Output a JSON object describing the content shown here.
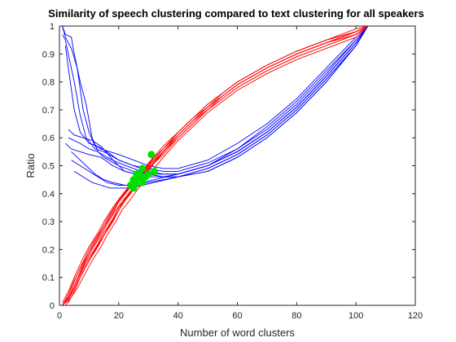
{
  "chart_data": {
    "type": "line",
    "title": "Similarity of speech clustering compared to text clustering for all speakers",
    "xlabel": "Number of word clusters",
    "ylabel": "Ratio",
    "xlim": [
      0,
      120
    ],
    "ylim": [
      0,
      1
    ],
    "xticks": [
      "0",
      "20",
      "40",
      "60",
      "80",
      "100",
      "120"
    ],
    "yticks": [
      "0",
      "0.1",
      "0.2",
      "0.3",
      "0.4",
      "0.5",
      "0.6",
      "0.7",
      "0.8",
      "0.9",
      "1"
    ],
    "grid": false,
    "colors": {
      "blue": "#0000ff",
      "red": "#ff0000",
      "green": "#00e000"
    },
    "series": [
      {
        "color": "blue",
        "x": [
          1,
          2,
          4,
          5,
          7,
          9,
          11,
          13,
          15,
          20,
          25,
          30,
          35,
          40,
          50,
          60,
          70,
          80,
          90,
          100,
          104
        ],
        "y": [
          1,
          0.97,
          0.96,
          0.9,
          0.8,
          0.72,
          0.6,
          0.55,
          0.53,
          0.5,
          0.48,
          0.47,
          0.46,
          0.47,
          0.5,
          0.56,
          0.64,
          0.73,
          0.84,
          0.95,
          1
        ]
      },
      {
        "color": "blue",
        "x": [
          1,
          2,
          4,
          6,
          8,
          10,
          12,
          14,
          20,
          25,
          30,
          35,
          40,
          50,
          60,
          70,
          80,
          90,
          100,
          104
        ],
        "y": [
          1,
          0.96,
          0.92,
          0.85,
          0.7,
          0.62,
          0.57,
          0.56,
          0.54,
          0.52,
          0.5,
          0.49,
          0.49,
          0.52,
          0.58,
          0.65,
          0.74,
          0.85,
          0.96,
          1
        ]
      },
      {
        "color": "blue",
        "x": [
          1,
          2,
          3,
          5,
          7,
          9,
          12,
          15,
          20,
          25,
          30,
          35,
          40,
          50,
          60,
          70,
          80,
          90,
          100,
          104
        ],
        "y": [
          0.97,
          0.95,
          0.9,
          0.8,
          0.68,
          0.6,
          0.56,
          0.55,
          0.52,
          0.5,
          0.48,
          0.47,
          0.47,
          0.5,
          0.55,
          0.62,
          0.71,
          0.82,
          0.94,
          1
        ]
      },
      {
        "color": "blue",
        "x": [
          2,
          3,
          5,
          7,
          10,
          13,
          16,
          20,
          25,
          30,
          35,
          40,
          50,
          60,
          70,
          80,
          90,
          100,
          104
        ],
        "y": [
          0.93,
          0.85,
          0.7,
          0.62,
          0.58,
          0.57,
          0.55,
          0.52,
          0.5,
          0.49,
          0.48,
          0.48,
          0.51,
          0.56,
          0.63,
          0.72,
          0.83,
          0.95,
          1
        ]
      },
      {
        "color": "blue",
        "x": [
          3,
          5,
          7,
          10,
          13,
          16,
          20,
          25,
          30,
          35,
          40,
          50,
          60,
          70,
          80,
          90,
          100,
          104
        ],
        "y": [
          0.6,
          0.59,
          0.58,
          0.56,
          0.55,
          0.53,
          0.51,
          0.49,
          0.47,
          0.46,
          0.46,
          0.49,
          0.54,
          0.61,
          0.7,
          0.81,
          0.93,
          1
        ]
      },
      {
        "color": "blue",
        "x": [
          3,
          5,
          8,
          11,
          14,
          18,
          22,
          26,
          30,
          35,
          40,
          50,
          60,
          70,
          80,
          90,
          100,
          104
        ],
        "y": [
          0.63,
          0.61,
          0.6,
          0.59,
          0.57,
          0.52,
          0.48,
          0.47,
          0.46,
          0.46,
          0.46,
          0.49,
          0.54,
          0.61,
          0.7,
          0.81,
          0.93,
          1
        ]
      },
      {
        "color": "blue",
        "x": [
          4,
          6,
          9,
          12,
          15,
          18,
          22,
          26,
          30,
          35,
          40,
          50,
          60,
          70,
          80,
          90,
          100,
          104
        ],
        "y": [
          0.55,
          0.53,
          0.5,
          0.47,
          0.45,
          0.44,
          0.43,
          0.43,
          0.44,
          0.45,
          0.46,
          0.48,
          0.53,
          0.6,
          0.69,
          0.8,
          0.93,
          1
        ]
      },
      {
        "color": "blue",
        "x": [
          5,
          8,
          11,
          14,
          17,
          20,
          24,
          28,
          32,
          36,
          40,
          50,
          60,
          70,
          80,
          90,
          100,
          104
        ],
        "y": [
          0.48,
          0.46,
          0.44,
          0.43,
          0.42,
          0.42,
          0.42,
          0.43,
          0.44,
          0.45,
          0.46,
          0.48,
          0.53,
          0.6,
          0.69,
          0.8,
          0.93,
          1
        ]
      },
      {
        "color": "blue",
        "x": [
          4,
          7,
          10,
          13,
          16,
          20,
          24,
          28,
          32,
          36,
          40,
          50,
          60,
          70,
          80,
          90,
          100,
          104
        ],
        "y": [
          0.52,
          0.5,
          0.48,
          0.46,
          0.44,
          0.43,
          0.43,
          0.44,
          0.45,
          0.46,
          0.47,
          0.5,
          0.55,
          0.62,
          0.71,
          0.82,
          0.94,
          1
        ]
      },
      {
        "color": "blue",
        "x": [
          2,
          4,
          7,
          10,
          14,
          18,
          22,
          26,
          30,
          35,
          40,
          50,
          60,
          70,
          80,
          90,
          100,
          104
        ],
        "y": [
          0.58,
          0.56,
          0.55,
          0.54,
          0.53,
          0.5,
          0.48,
          0.47,
          0.47,
          0.47,
          0.47,
          0.5,
          0.55,
          0.62,
          0.71,
          0.82,
          0.94,
          1
        ]
      },
      {
        "color": "red",
        "x": [
          1,
          3,
          5,
          8,
          10,
          13,
          15,
          18,
          20,
          23,
          25,
          28,
          30,
          35,
          40,
          45,
          50,
          55,
          60,
          70,
          80,
          90,
          100,
          104
        ],
        "y": [
          0,
          0.04,
          0.09,
          0.15,
          0.19,
          0.24,
          0.28,
          0.33,
          0.37,
          0.41,
          0.44,
          0.47,
          0.5,
          0.55,
          0.61,
          0.66,
          0.71,
          0.75,
          0.79,
          0.85,
          0.9,
          0.94,
          0.98,
          1
        ]
      },
      {
        "color": "red",
        "x": [
          1,
          3,
          5,
          8,
          10,
          13,
          15,
          18,
          20,
          23,
          25,
          28,
          30,
          35,
          40,
          45,
          50,
          55,
          60,
          70,
          80,
          90,
          100,
          104
        ],
        "y": [
          0.01,
          0.05,
          0.1,
          0.17,
          0.21,
          0.26,
          0.3,
          0.35,
          0.38,
          0.42,
          0.45,
          0.48,
          0.51,
          0.57,
          0.62,
          0.67,
          0.72,
          0.76,
          0.8,
          0.86,
          0.91,
          0.95,
          0.98,
          1
        ]
      },
      {
        "color": "red",
        "x": [
          1,
          3,
          5,
          8,
          10,
          13,
          15,
          18,
          20,
          23,
          25,
          28,
          30,
          35,
          40,
          45,
          50,
          55,
          60,
          70,
          80,
          90,
          100,
          104
        ],
        "y": [
          0,
          0.03,
          0.07,
          0.13,
          0.17,
          0.22,
          0.26,
          0.31,
          0.35,
          0.39,
          0.42,
          0.46,
          0.49,
          0.54,
          0.6,
          0.65,
          0.7,
          0.74,
          0.78,
          0.84,
          0.89,
          0.93,
          0.97,
          1
        ]
      },
      {
        "color": "red",
        "x": [
          2,
          4,
          6,
          9,
          11,
          14,
          16,
          19,
          21,
          24,
          26,
          29,
          31,
          35,
          40,
          45,
          50,
          55,
          60,
          70,
          80,
          90,
          100,
          104
        ],
        "y": [
          0.02,
          0.06,
          0.11,
          0.18,
          0.22,
          0.27,
          0.31,
          0.36,
          0.39,
          0.43,
          0.46,
          0.49,
          0.52,
          0.56,
          0.62,
          0.67,
          0.71,
          0.76,
          0.8,
          0.86,
          0.91,
          0.95,
          0.98,
          1
        ]
      },
      {
        "color": "red",
        "x": [
          2,
          4,
          6,
          9,
          11,
          14,
          16,
          19,
          21,
          24,
          26,
          29,
          31,
          35,
          40,
          45,
          50,
          55,
          60,
          70,
          80,
          90,
          100,
          104
        ],
        "y": [
          0.01,
          0.04,
          0.08,
          0.14,
          0.18,
          0.23,
          0.27,
          0.32,
          0.36,
          0.4,
          0.43,
          0.47,
          0.5,
          0.55,
          0.61,
          0.66,
          0.71,
          0.75,
          0.79,
          0.85,
          0.9,
          0.94,
          0.98,
          1
        ]
      },
      {
        "color": "red",
        "x": [
          2,
          4,
          6,
          9,
          11,
          14,
          16,
          19,
          21,
          24,
          26,
          29,
          31,
          35,
          40,
          45,
          50,
          55,
          60,
          70,
          80,
          90,
          100,
          104
        ],
        "y": [
          0.01,
          0.05,
          0.09,
          0.16,
          0.2,
          0.25,
          0.29,
          0.34,
          0.37,
          0.41,
          0.44,
          0.48,
          0.51,
          0.56,
          0.61,
          0.66,
          0.71,
          0.75,
          0.79,
          0.85,
          0.9,
          0.94,
          0.97,
          1
        ]
      },
      {
        "color": "red",
        "x": [
          3,
          5,
          7,
          10,
          12,
          15,
          17,
          20,
          22,
          25,
          27,
          30,
          32,
          36,
          40,
          45,
          50,
          55,
          60,
          70,
          80,
          90,
          100,
          104
        ],
        "y": [
          0.02,
          0.07,
          0.12,
          0.19,
          0.23,
          0.28,
          0.32,
          0.37,
          0.4,
          0.44,
          0.47,
          0.5,
          0.53,
          0.57,
          0.62,
          0.67,
          0.72,
          0.76,
          0.8,
          0.86,
          0.91,
          0.95,
          0.99,
          1
        ]
      },
      {
        "color": "red",
        "x": [
          3,
          5,
          7,
          10,
          12,
          15,
          17,
          20,
          22,
          25,
          27,
          30,
          32,
          36,
          40,
          45,
          50,
          55,
          60,
          70,
          80,
          90,
          100,
          104
        ],
        "y": [
          0.01,
          0.05,
          0.1,
          0.16,
          0.2,
          0.25,
          0.29,
          0.34,
          0.38,
          0.42,
          0.45,
          0.48,
          0.51,
          0.56,
          0.61,
          0.66,
          0.7,
          0.75,
          0.79,
          0.85,
          0.9,
          0.94,
          0.98,
          1
        ]
      },
      {
        "color": "red",
        "x": [
          2,
          4,
          6,
          9,
          11,
          14,
          16,
          19,
          21,
          24,
          26,
          29,
          31,
          35,
          40,
          45,
          50,
          55,
          60,
          70,
          80,
          90,
          100,
          104
        ],
        "y": [
          0,
          0.03,
          0.06,
          0.12,
          0.16,
          0.21,
          0.25,
          0.3,
          0.34,
          0.38,
          0.41,
          0.45,
          0.48,
          0.53,
          0.59,
          0.64,
          0.69,
          0.73,
          0.77,
          0.83,
          0.88,
          0.92,
          0.96,
          1
        ]
      },
      {
        "color": "red",
        "x": [
          1,
          3,
          5,
          8,
          10,
          13,
          15,
          18,
          20,
          23,
          25,
          28,
          30,
          35,
          40,
          45,
          50,
          55,
          60,
          70,
          80,
          90,
          100,
          104
        ],
        "y": [
          0,
          0.02,
          0.06,
          0.12,
          0.16,
          0.21,
          0.25,
          0.3,
          0.34,
          0.39,
          0.42,
          0.46,
          0.49,
          0.55,
          0.6,
          0.65,
          0.7,
          0.74,
          0.78,
          0.84,
          0.89,
          0.93,
          0.97,
          1
        ]
      }
    ],
    "intersections": {
      "color": "green",
      "x": [
        24,
        25,
        26,
        27,
        28,
        28,
        29,
        30,
        31,
        32,
        25,
        26,
        27
      ],
      "y": [
        0.43,
        0.45,
        0.47,
        0.46,
        0.49,
        0.44,
        0.46,
        0.47,
        0.54,
        0.48,
        0.42,
        0.44,
        0.47
      ]
    }
  }
}
